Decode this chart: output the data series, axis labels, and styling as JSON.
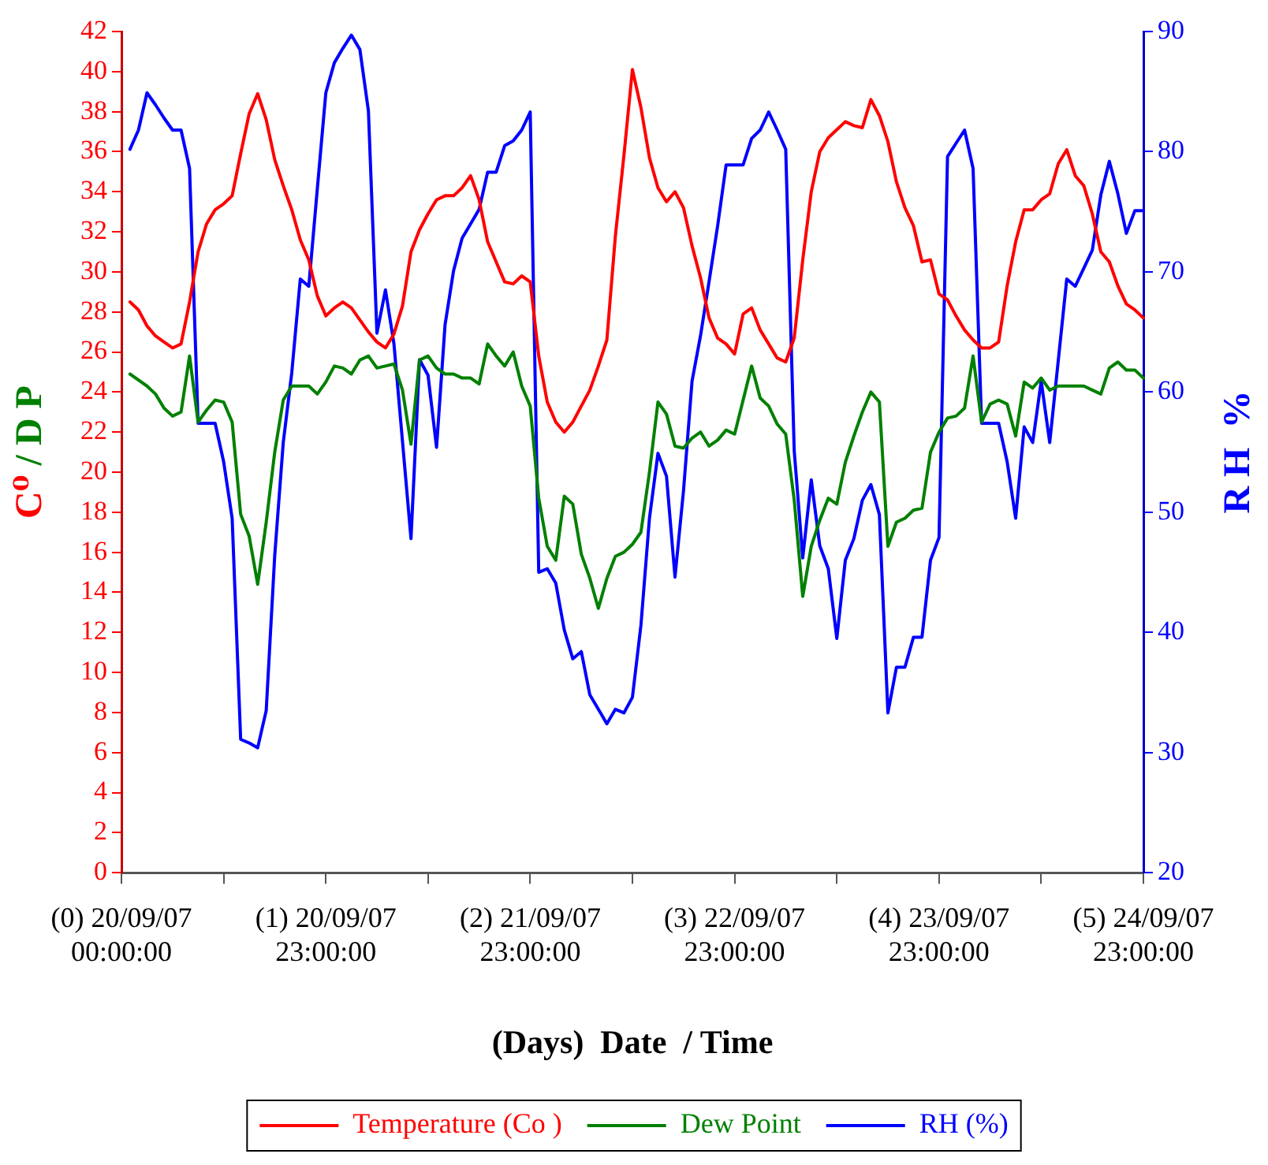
{
  "chart_data": {
    "type": "line",
    "xlabel": "(Days)  Date  / Time",
    "ylabel": "C⁰ / D P",
    "y2label": "R H  %",
    "legend": "bottom",
    "categories": [
      "(0) 20/09/07\n00:00:00",
      null,
      null,
      null,
      null,
      null,
      null,
      null,
      null,
      null,
      null,
      null,
      null,
      null,
      null,
      null,
      null,
      null,
      null,
      null,
      null,
      null,
      null,
      null,
      "(1) 20/09/07\n23:00:00",
      null,
      null,
      null,
      null,
      null,
      null,
      null,
      null,
      null,
      null,
      null,
      null,
      null,
      null,
      null,
      null,
      null,
      null,
      null,
      null,
      null,
      null,
      null,
      "(2) 21/09/07\n23:00:00",
      null,
      null,
      null,
      null,
      null,
      null,
      null,
      null,
      null,
      null,
      null,
      null,
      null,
      null,
      null,
      null,
      null,
      null,
      null,
      null,
      null,
      null,
      null,
      "(3) 22/09/07\n23:00:00",
      null,
      null,
      null,
      null,
      null,
      null,
      null,
      null,
      null,
      null,
      null,
      null,
      null,
      null,
      null,
      null,
      null,
      null,
      null,
      null,
      null,
      null,
      null,
      "(4) 23/09/07\n23:00:00",
      null,
      null,
      null,
      null,
      null,
      null,
      null,
      null,
      null,
      null,
      null,
      null,
      null,
      null,
      null,
      null,
      null,
      null,
      null,
      null,
      null,
      null,
      null,
      "(5) 24/09/07\n23:00:00"
    ],
    "ylim": [
      0,
      42
    ],
    "yticks": [
      0,
      2,
      4,
      6,
      8,
      10,
      12,
      14,
      16,
      18,
      20,
      22,
      24,
      26,
      28,
      30,
      32,
      34,
      36,
      38,
      40,
      42
    ],
    "y2lim": [
      20,
      90
    ],
    "y2ticks": [
      20,
      30,
      40,
      50,
      60,
      70,
      80,
      90
    ],
    "series": [
      {
        "name": "Temperature (Co )",
        "color": "#ff0000",
        "axis": "y",
        "values": [
          null,
          28.5,
          28.1,
          27.3,
          26.8,
          26.5,
          26.2,
          26.4,
          28.5,
          31.0,
          32.4,
          33.1,
          33.4,
          33.8,
          35.9,
          37.9,
          38.9,
          37.6,
          35.6,
          34.3,
          33.1,
          31.6,
          30.6,
          28.8,
          27.8,
          28.2,
          28.5,
          28.2,
          27.6,
          27.0,
          26.5,
          26.2,
          26.9,
          28.3,
          31.0,
          32.1,
          32.9,
          33.6,
          33.8,
          33.8,
          34.2,
          34.8,
          33.6,
          31.5,
          30.5,
          29.5,
          29.4,
          29.8,
          29.5,
          25.8,
          23.5,
          22.5,
          22.0,
          22.5,
          23.3,
          24.1,
          25.3,
          26.6,
          31.8,
          35.8,
          40.1,
          38.2,
          35.7,
          34.2,
          33.5,
          34.0,
          33.2,
          31.3,
          29.7,
          27.7,
          26.7,
          26.4,
          25.9,
          27.9,
          28.2,
          27.1,
          26.4,
          25.7,
          25.5,
          26.7,
          30.6,
          34.0,
          36.0,
          36.7,
          37.1,
          37.5,
          37.3,
          37.2,
          38.6,
          37.8,
          36.5,
          34.5,
          33.2,
          32.3,
          30.5,
          30.6,
          28.9,
          28.6,
          27.8,
          27.1,
          26.6,
          26.2,
          26.2,
          26.5,
          29.3,
          31.5,
          33.1,
          33.1,
          33.6,
          33.9,
          35.4,
          36.1,
          34.8,
          34.3,
          32.9,
          31.0,
          30.5,
          29.3,
          28.4,
          28.1,
          27.7
        ]
      },
      {
        "name": "Dew Point",
        "color": "#008000",
        "axis": "y",
        "values": [
          null,
          24.9,
          24.6,
          24.3,
          23.9,
          23.2,
          22.8,
          23.0,
          25.8,
          22.5,
          23.1,
          23.6,
          23.5,
          22.5,
          17.9,
          16.8,
          14.4,
          17.5,
          21.0,
          23.6,
          24.3,
          24.3,
          24.3,
          23.9,
          24.5,
          25.3,
          25.2,
          24.9,
          25.6,
          25.8,
          25.2,
          25.3,
          25.4,
          24.1,
          21.4,
          25.6,
          25.8,
          25.2,
          24.9,
          24.9,
          24.7,
          24.7,
          24.4,
          26.4,
          25.8,
          25.3,
          26.0,
          24.3,
          23.3,
          18.7,
          16.3,
          15.6,
          18.8,
          18.4,
          15.9,
          14.7,
          13.2,
          14.7,
          15.8,
          16.0,
          16.4,
          17.0,
          20.0,
          23.5,
          22.9,
          21.3,
          21.2,
          21.7,
          22.0,
          21.3,
          21.6,
          22.1,
          21.9,
          23.6,
          25.3,
          23.7,
          23.3,
          22.4,
          21.9,
          18.6,
          13.8,
          16.3,
          17.6,
          18.7,
          18.4,
          20.5,
          21.8,
          23.0,
          24.0,
          23.5,
          16.3,
          17.5,
          17.7,
          18.1,
          18.2,
          21.0,
          22.0,
          22.7,
          22.8,
          23.2,
          25.8,
          22.5,
          23.4,
          23.6,
          23.4,
          21.8,
          24.5,
          24.2,
          24.7,
          24.1,
          24.3,
          24.3,
          24.3,
          24.3,
          24.1,
          23.9,
          25.2,
          25.5,
          25.1,
          25.1,
          24.7
        ]
      },
      {
        "name": "RH (%)",
        "color": "#0000ff",
        "axis": "y2",
        "values": [
          null,
          80.2,
          81.8,
          84.9,
          83.9,
          82.8,
          81.8,
          81.8,
          78.6,
          57.4,
          57.4,
          57.4,
          54.2,
          49.5,
          31.1,
          30.8,
          30.4,
          33.5,
          46.4,
          55.8,
          61.6,
          69.4,
          68.8,
          76.9,
          84.9,
          87.4,
          88.6,
          89.7,
          88.5,
          83.4,
          64.9,
          68.5,
          64.0,
          55.9,
          47.8,
          62.7,
          61.4,
          55.4,
          65.6,
          70.1,
          72.8,
          74.0,
          75.2,
          78.3,
          78.3,
          80.5,
          80.9,
          81.8,
          83.3,
          45.0,
          45.3,
          44.1,
          40.2,
          37.8,
          38.4,
          34.8,
          33.6,
          32.4,
          33.6,
          33.3,
          34.6,
          40.6,
          49.5,
          54.9,
          53.0,
          44.6,
          51.8,
          60.9,
          64.7,
          69.2,
          73.8,
          78.9,
          78.9,
          78.9,
          81.1,
          81.8,
          83.3,
          81.8,
          80.2,
          55.1,
          46.2,
          52.7,
          47.2,
          45.3,
          39.5,
          46.0,
          47.8,
          51.0,
          52.3,
          49.8,
          33.3,
          37.1,
          37.1,
          39.6,
          39.6,
          46.0,
          47.9,
          79.6,
          80.7,
          81.8,
          78.6,
          57.4,
          57.4,
          57.4,
          54.2,
          49.5,
          57.1,
          55.8,
          60.9,
          55.8,
          62.6,
          69.4,
          68.8,
          70.3,
          71.8,
          76.4,
          79.2,
          76.5,
          73.2,
          75.1,
          75.1
        ]
      }
    ]
  }
}
